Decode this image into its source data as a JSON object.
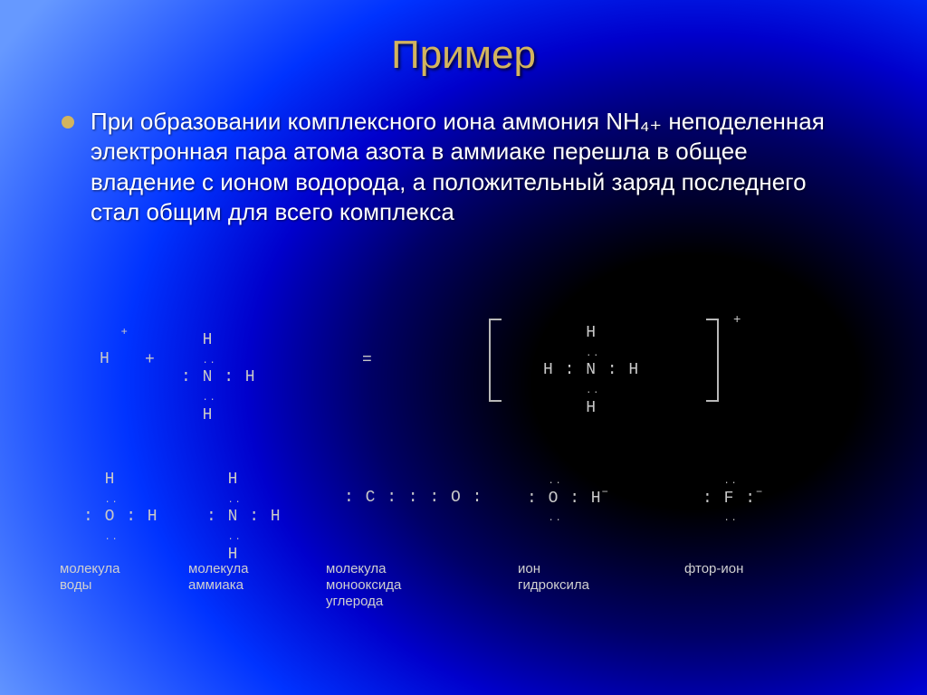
{
  "colors": {
    "title": "#d2b45f",
    "body_text": "#ffffff",
    "diagram_text": "#c8c8c8",
    "label_text": "#d0d0d0",
    "bullet": "#d2b45f",
    "bracket": "#b8b8b8",
    "bg_gradient_stops": [
      "#000000",
      "#000066",
      "#0000cc",
      "#0033ff",
      "#3366ff",
      "#6699ff"
    ]
  },
  "typography": {
    "title_fontsize": 44,
    "paragraph_fontsize": 26,
    "diagram_fontsize": 18,
    "label_fontsize": 15,
    "title_family": "Arial",
    "diagram_family": "Courier New"
  },
  "title": "Пример",
  "paragraph": "При образовании комплексного иона аммония NH₄₊ неподеленная электронная пара атома азота в аммиаке перешла в общее владение с ионом водорода, а положительный заряд последнего стал общим для всего комплекса",
  "equation": {
    "h_plus_super": "+",
    "h_plus": "H",
    "plus": "+",
    "nh3_top": "H",
    "nh3_mid": ": N : H",
    "nh3_dots_above": "..",
    "nh3_dots_below": "..",
    "nh3_bot": "H",
    "equals": "=",
    "nh4_top": "H",
    "nh4_mid": "H : N : H",
    "nh4_bot": "H",
    "nh4_dots_above": "..",
    "nh4_dots_below": "..",
    "bracket_plus": "+"
  },
  "species": {
    "h2o": {
      "top": "H",
      "top_dots": "..",
      "mid": ": O : H",
      "bot_dots": ".."
    },
    "nh3": {
      "top": "H",
      "top_dots": "..",
      "mid": ": N : H",
      "mid_dots": "..",
      "bot": "H"
    },
    "co": {
      "left_dots": "",
      "mid": ": C : : : O :"
    },
    "oh": {
      "top_dots": "..",
      "mid": ": O : H",
      "bot_dots": "..",
      "charge": "−"
    },
    "f": {
      "top_dots": "..",
      "mid": ": F :",
      "bot_dots": "..",
      "charge": "−"
    }
  },
  "labels": {
    "h2o": "молекула\nводы",
    "nh3": "молекула\nаммиака",
    "co": "молекула\nмонооксида\nуглерода",
    "oh": "ион\nгидроксила",
    "f": "фтор-ион"
  }
}
